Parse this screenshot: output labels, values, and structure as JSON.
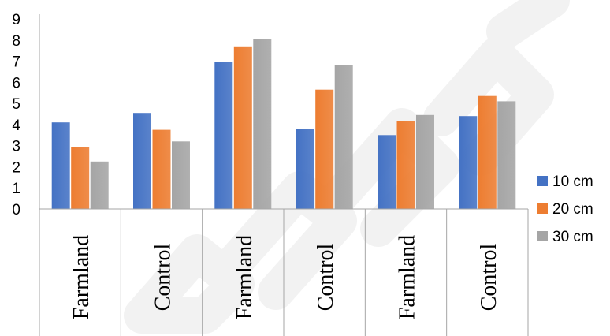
{
  "colors": {
    "series": [
      "#4472C4",
      "#ED7D31",
      "#A5A5A5"
    ],
    "axis": "#a6a6a6",
    "watermark": "#eeeeee"
  },
  "chart_data": {
    "type": "bar",
    "title": "",
    "xlabel": "",
    "ylabel": "",
    "ylim": [
      0,
      9
    ],
    "yticks": [
      0,
      1,
      2,
      3,
      4,
      5,
      6,
      7,
      8,
      9
    ],
    "grid": false,
    "legend_position": "right",
    "categories": [
      "Farmland",
      "Control",
      "Farmland",
      "Control",
      "Farmland",
      "Control"
    ],
    "series": [
      {
        "name": "10 cm",
        "values": [
          4.1,
          4.55,
          6.95,
          3.8,
          3.5,
          4.4
        ]
      },
      {
        "name": "20 cm",
        "values": [
          2.95,
          3.75,
          7.7,
          5.65,
          4.15,
          5.35
        ]
      },
      {
        "name": "30 cm",
        "values": [
          2.25,
          3.2,
          8.05,
          6.8,
          4.45,
          5.1
        ]
      }
    ]
  }
}
